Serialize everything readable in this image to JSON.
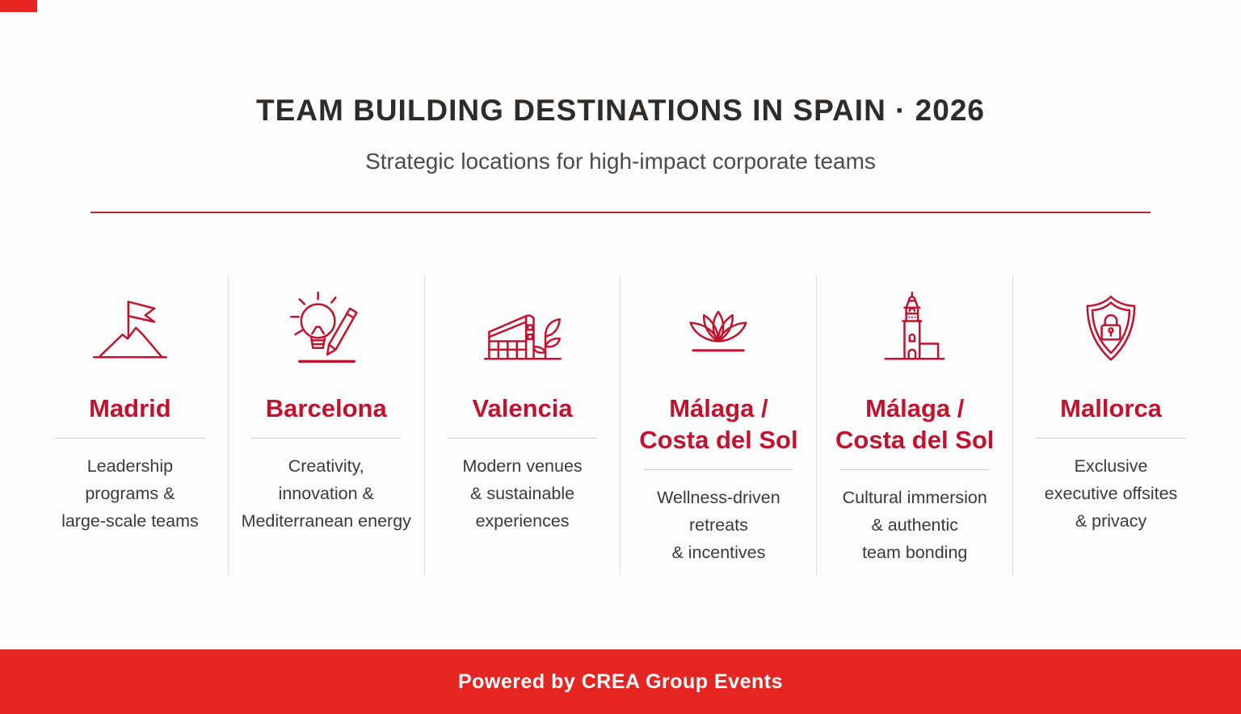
{
  "colors": {
    "accent_red": "#c2122d",
    "footer_red": "#e52521",
    "rule_red": "#b02832",
    "title_text": "#2e2b29",
    "subtitle_text": "#4e4a47",
    "body_text": "#3c3936"
  },
  "header": {
    "title": "TEAM BUILDING DESTINATIONS IN SPAIN · 2026",
    "subtitle": "Strategic locations for high-impact corporate teams"
  },
  "destinations": [
    {
      "icon": "flag-on-mountain-icon",
      "name_lines": [
        "Madrid"
      ],
      "description_lines": [
        "Leadership",
        "programs &",
        "large-scale teams"
      ]
    },
    {
      "icon": "lightbulb-and-pencil-icon",
      "name_lines": [
        "Barcelona"
      ],
      "description_lines": [
        "Creativity,",
        "innovation &",
        "Mediterranean energy"
      ]
    },
    {
      "icon": "sustainable-building-icon",
      "name_lines": [
        "Valencia"
      ],
      "description_lines": [
        "Modern venues",
        "& sustainable",
        "experiences"
      ]
    },
    {
      "icon": "lotus-icon",
      "name_lines": [
        "Málaga /",
        "Costa del Sol"
      ],
      "description_lines": [
        "Wellness-driven",
        "retreats",
        "& incentives"
      ]
    },
    {
      "icon": "tower-icon",
      "name_lines": [
        "Málaga /",
        "Costa del Sol"
      ],
      "description_lines": [
        "Cultural immersion",
        "& authentic",
        "team bonding"
      ]
    },
    {
      "icon": "shield-lock-icon",
      "name_lines": [
        "Mallorca"
      ],
      "description_lines": [
        "Exclusive",
        "executive offsites",
        "& privacy"
      ]
    }
  ],
  "footer": {
    "text": "Powered by CREA Group Events"
  }
}
